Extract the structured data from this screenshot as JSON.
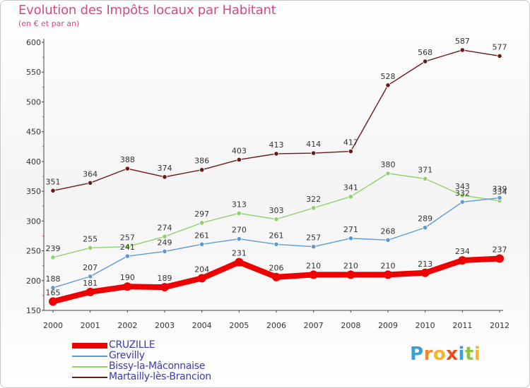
{
  "title": "Evolution des Impôts locaux par Habitant",
  "subtitle": "(en € et par an)",
  "logo": {
    "letters": [
      "P",
      "r",
      "o",
      "x",
      "i",
      "t",
      "i"
    ],
    "colors": [
      "#3aa0d8",
      "#f08a24",
      "#f4b52c",
      "#e84c1c",
      "#3aa0d8",
      "#8cc63f",
      "#f4b52c"
    ]
  },
  "chart_data": {
    "type": "line",
    "title": "Evolution des Impôts locaux par Habitant",
    "subtitle": "(en € et par an)",
    "x": [
      "2000",
      "2001",
      "2002",
      "2003",
      "2004",
      "2005",
      "2006",
      "2007",
      "2008",
      "2009",
      "2010",
      "2011",
      "2012"
    ],
    "ylim": [
      150,
      600
    ],
    "yticks": [
      "150",
      "200",
      "250",
      "300",
      "350",
      "400",
      "450",
      "500",
      "550",
      "600"
    ],
    "grid": false,
    "legend_position": "bottom-left",
    "series": [
      {
        "name": "CRUZILLE",
        "color": "#ee0000",
        "thick": true,
        "values": [
          165,
          181,
          190,
          189,
          204,
          231,
          206,
          210,
          210,
          210,
          213,
          234,
          237
        ],
        "labels": [
          "165",
          "181",
          "190",
          "189",
          "204",
          "231",
          "206",
          "210",
          "210",
          "210",
          "213",
          "234",
          "237"
        ]
      },
      {
        "name": "Grevilly",
        "color": "#5b9bd5",
        "thick": false,
        "values": [
          188,
          207,
          241,
          249,
          261,
          270,
          261,
          257,
          271,
          268,
          289,
          332,
          339
        ],
        "labels": [
          "188",
          "207",
          "241",
          "249",
          "261",
          "270",
          "261",
          "257",
          "271",
          "268",
          "289",
          "332",
          "339"
        ]
      },
      {
        "name": "Bissy-la-Mâconnaise",
        "color": "#8fd16a",
        "thick": false,
        "values": [
          239,
          255,
          257,
          274,
          297,
          313,
          303,
          322,
          341,
          380,
          371,
          343,
          334
        ],
        "labels": [
          "239",
          "255",
          "257",
          "274",
          "297",
          "313",
          "303",
          "322",
          "341",
          "380",
          "371",
          "343",
          "334"
        ]
      },
      {
        "name": "Martailly-lès-Brancion",
        "color": "#6b1a1a",
        "thick": false,
        "values": [
          351,
          364,
          388,
          374,
          386,
          403,
          413,
          414,
          417,
          528,
          568,
          587,
          577
        ],
        "labels": [
          "351",
          "364",
          "388",
          "374",
          "386",
          "403",
          "413",
          "414",
          "417",
          "528",
          "568",
          "587",
          "577"
        ]
      }
    ]
  }
}
